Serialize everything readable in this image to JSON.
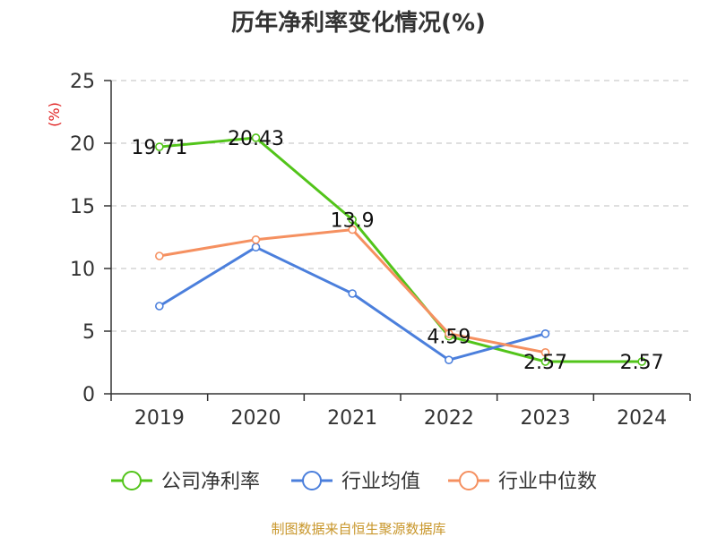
{
  "title": "历年净利率变化情况(%)",
  "source": "制图数据来自恒生聚源数据库",
  "chart_data": {
    "type": "line",
    "title": "历年净利率变化情况(%)",
    "ylabel": "(%)",
    "xlabel": "",
    "categories": [
      "2019",
      "2020",
      "2021",
      "2022",
      "2023",
      "2024"
    ],
    "ylim": [
      0,
      25
    ],
    "yticks": [
      0,
      5,
      10,
      15,
      20,
      25
    ],
    "grid": true,
    "legend_position": "bottom",
    "series": [
      {
        "name": "公司净利率",
        "color": "#52c41a",
        "values": [
          19.71,
          20.43,
          13.9,
          4.59,
          2.57,
          2.57
        ],
        "labels": [
          "19.71",
          "20.43",
          "13.9",
          "4.59",
          "2.57",
          "2.57"
        ]
      },
      {
        "name": "行业均值",
        "color": "#4b7fdc",
        "values": [
          7.0,
          11.7,
          8.0,
          2.7,
          4.8,
          null
        ]
      },
      {
        "name": "行业中位数",
        "color": "#f59060",
        "values": [
          11.0,
          12.3,
          13.1,
          4.8,
          3.3,
          null
        ]
      }
    ]
  }
}
